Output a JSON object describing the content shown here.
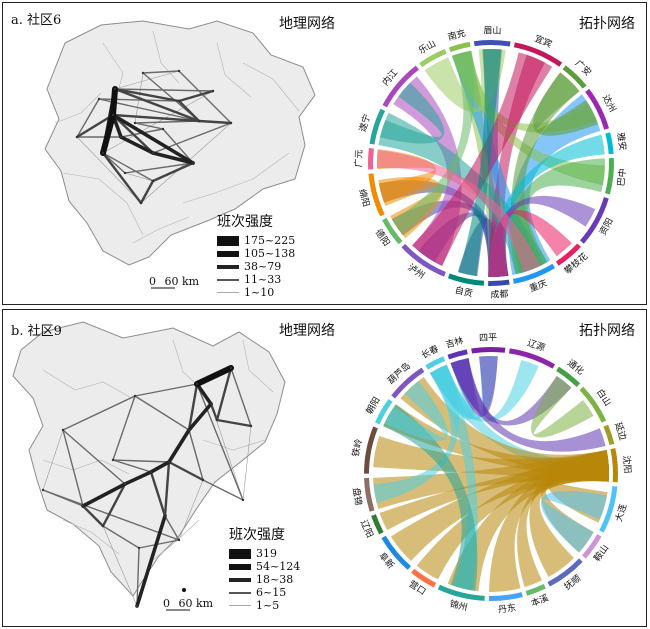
{
  "panels": [
    {
      "id": "a",
      "label": "a. 社区6",
      "geo_title": "地理网络",
      "topo_title": "拓扑网络",
      "legend": {
        "title": "班次强度",
        "items": [
          {
            "label": "175~225",
            "level": 5
          },
          {
            "label": "105~138",
            "level": 4
          },
          {
            "label": "38~79",
            "level": 3
          },
          {
            "label": "11~33",
            "level": 2
          },
          {
            "label": "1~10",
            "level": 1
          }
        ]
      },
      "scale": {
        "zero": "0",
        "label": "60 km"
      },
      "cities": [
        "南充",
        "眉山",
        "宜宾",
        "广安",
        "达州",
        "雅安",
        "巴中",
        "资阳",
        "攀枝花",
        "重庆",
        "成都",
        "自贡",
        "泸州",
        "德阳",
        "绵阳",
        "广元",
        "遂宁",
        "内江",
        "乐山"
      ],
      "arc_colors": [
        "#8bc34a",
        "#3f51b5",
        "#c2185b",
        "#5c9c3a",
        "#9c27b0",
        "#00bcd4",
        "#4caf50",
        "#673ab7",
        "#e91e63",
        "#2196f3",
        "#3949ab",
        "#00897b",
        "#7e57c2",
        "#66bb6a",
        "#ef8c00",
        "#f06292",
        "#26a69a",
        "#ab47bc",
        "#9ccc65"
      ]
    },
    {
      "id": "b",
      "label": "b. 社区9",
      "geo_title": "地理网络",
      "topo_title": "拓扑网络",
      "legend": {
        "title": "班次强度",
        "items": [
          {
            "label": "319",
            "level": 5
          },
          {
            "label": "54~124",
            "level": 4
          },
          {
            "label": "18~38",
            "level": 3
          },
          {
            "label": "6~15",
            "level": 2
          },
          {
            "label": "1~5",
            "level": 1
          }
        ]
      },
      "scale": {
        "zero": "0",
        "label": "60 km"
      },
      "cities": [
        "吉林",
        "四平",
        "辽源",
        "通化",
        "白山",
        "延边",
        "沈阳",
        "大连",
        "鞍山",
        "抚顺",
        "本溪",
        "丹东",
        "锦州",
        "营口",
        "阜新",
        "辽阳",
        "盘锦",
        "铁岭",
        "朝阳",
        "葫芦岛",
        "长春"
      ],
      "arc_colors": [
        "#5e35b1",
        "#7b1fa2",
        "#8e24aa",
        "#43a047",
        "#7cb342",
        "#9e9d24",
        "#b8860b",
        "#4fc3f7",
        "#ce93d8",
        "#5c6bc0",
        "#66bb6a",
        "#42a5f5",
        "#26a69a",
        "#ff7043",
        "#1e88e5",
        "#2e7d32",
        "#8d6e63",
        "#6d4c41",
        "#4dd0e1",
        "#7e57c2",
        "#4dd0e1"
      ]
    }
  ]
}
